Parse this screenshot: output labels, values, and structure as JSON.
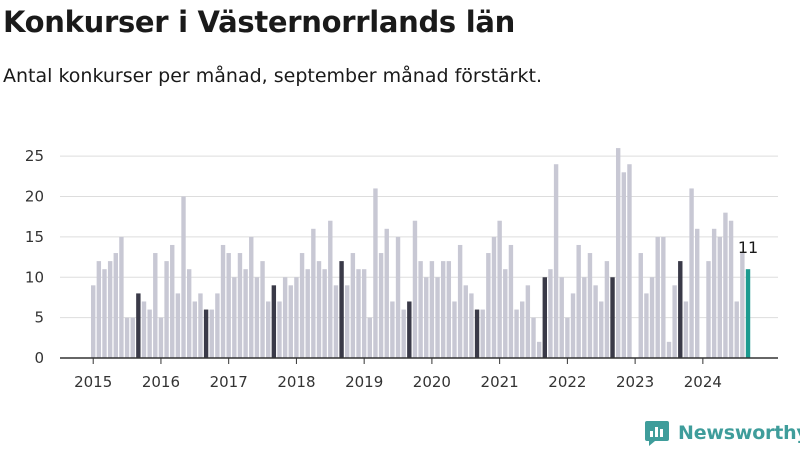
{
  "header": {
    "title": "Konkurser i Västernorrlands län",
    "subtitle": "Antal konkurser per månad, september månad förstärkt."
  },
  "brand": {
    "name": "Newsworthy"
  },
  "colors": {
    "bar": "#c8c8d4",
    "highlight": "#3a3a48",
    "latest": "#1b9a8f",
    "grid": "#dddddd"
  },
  "chart_data": {
    "type": "bar",
    "x_start": "2015-01",
    "x_end": "2024-09",
    "highlight_month": "September",
    "values": [
      9,
      12,
      11,
      12,
      13,
      15,
      5,
      5,
      8,
      7,
      6,
      13,
      5,
      12,
      14,
      8,
      20,
      11,
      7,
      8,
      6,
      6,
      8,
      14,
      13,
      10,
      13,
      11,
      15,
      10,
      12,
      7,
      9,
      7,
      10,
      9,
      10,
      13,
      11,
      16,
      12,
      11,
      17,
      9,
      12,
      9,
      13,
      11,
      11,
      5,
      21,
      13,
      16,
      7,
      15,
      6,
      7,
      17,
      12,
      10,
      12,
      10,
      12,
      12,
      7,
      14,
      9,
      8,
      6,
      6,
      13,
      15,
      17,
      11,
      14,
      6,
      7,
      9,
      5,
      2,
      10,
      11,
      24,
      10,
      5,
      8,
      14,
      10,
      13,
      9,
      7,
      12,
      10,
      26,
      23,
      24,
      0,
      13,
      8,
      10,
      15,
      15,
      2,
      9,
      12,
      7,
      21,
      16,
      0,
      12,
      16,
      15,
      18,
      17,
      7,
      13,
      11
    ],
    "xticks": [
      "2015",
      "2016",
      "2017",
      "2018",
      "2019",
      "2020",
      "2021",
      "2022",
      "2023",
      "2024"
    ],
    "yticks": [
      0,
      5,
      10,
      15,
      20,
      25
    ],
    "ylim": [
      0,
      27
    ],
    "latest_label": "11",
    "grid": true
  }
}
